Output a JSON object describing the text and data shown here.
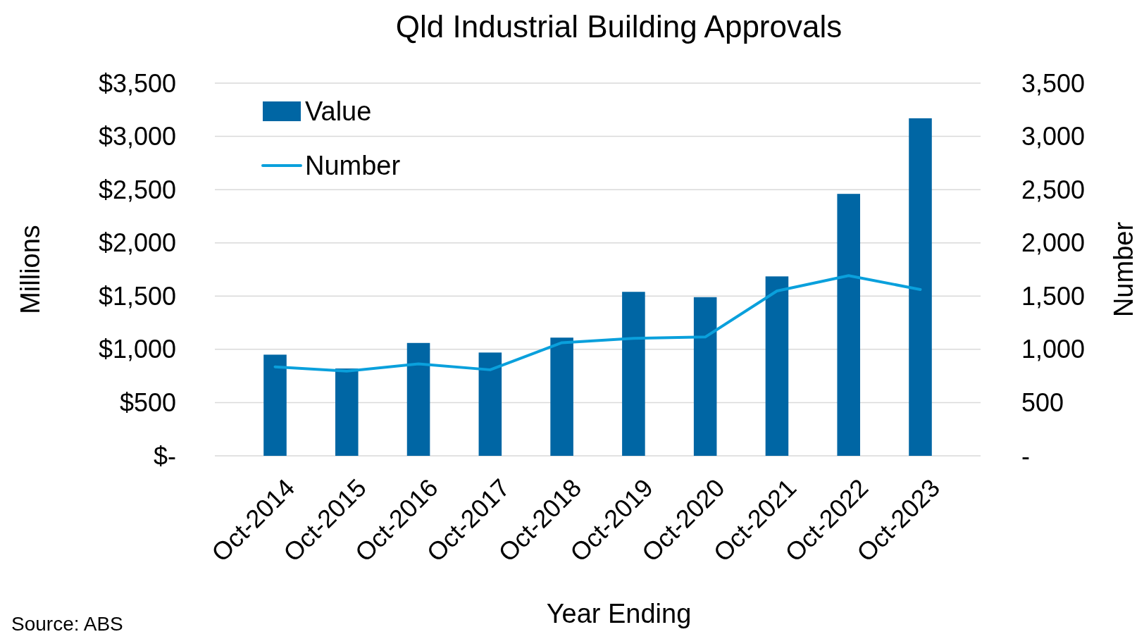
{
  "chart_data": {
    "type": "bar",
    "title": "Qld Industrial Building Approvals",
    "xlabel": "Year Ending",
    "ylabel": "Millions",
    "y2label": "Number",
    "categories": [
      "Oct-2014",
      "Oct-2015",
      "Oct-2016",
      "Oct-2017",
      "Oct-2018",
      "Oct-2019",
      "Oct-2020",
      "Oct-2021",
      "Oct-2022",
      "Oct-2023"
    ],
    "series": [
      {
        "name": "Value",
        "color": "#0066a4",
        "values": [
          950,
          820,
          1060,
          970,
          1110,
          1540,
          1490,
          1685,
          2460,
          3170
        ]
      },
      {
        "name": "Number",
        "type": "line",
        "axis": "y2",
        "color": "#0aa0dc",
        "values": [
          836,
          795,
          863,
          808,
          1062,
          1103,
          1116,
          1548,
          1692,
          1562
        ]
      }
    ],
    "ylim": [
      0,
      3500
    ],
    "yticks": [
      {
        "value": 0,
        "label": "$-"
      },
      {
        "value": 500,
        "label": "$500"
      },
      {
        "value": 1000,
        "label": "$1,000"
      },
      {
        "value": 1500,
        "label": "$1,500"
      },
      {
        "value": 2000,
        "label": "$2,000"
      },
      {
        "value": 2500,
        "label": "$2,500"
      },
      {
        "value": 3000,
        "label": "$3,000"
      },
      {
        "value": 3500,
        "label": "$3,500"
      }
    ],
    "y2lim": [
      0,
      3500
    ],
    "y2ticks": [
      {
        "value": 0,
        "label": "-"
      },
      {
        "value": 500,
        "label": "500"
      },
      {
        "value": 1000,
        "label": "1,000"
      },
      {
        "value": 1500,
        "label": "1,500"
      },
      {
        "value": 2000,
        "label": "2,000"
      },
      {
        "value": 2500,
        "label": "2,500"
      },
      {
        "value": 3000,
        "label": "3,000"
      },
      {
        "value": 3500,
        "label": "3,500"
      }
    ],
    "grid": "y",
    "legend": "top left",
    "marker": "none",
    "line_style": "solid",
    "annotations": [
      "Source: ABS"
    ]
  }
}
